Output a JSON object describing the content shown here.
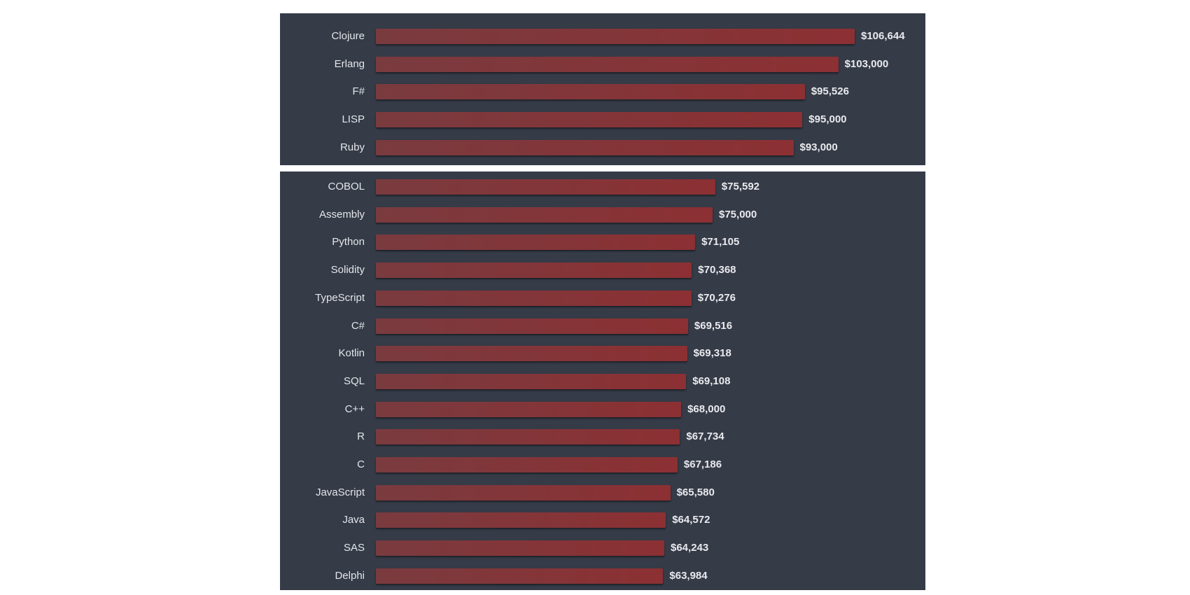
{
  "colors": {
    "panel_background": "#353b47",
    "bar_start": "#7a3b3f",
    "bar_end": "#8c3033",
    "label_text": "#e4e6ea"
  },
  "chart_data": [
    {
      "type": "bar",
      "orientation": "horizontal",
      "categories": [
        "Clojure",
        "Erlang",
        "F#",
        "LISP",
        "Ruby"
      ],
      "values": [
        106644,
        103000,
        95526,
        95000,
        93000
      ],
      "value_labels": [
        "$106,644",
        "$103,000",
        "$95,526",
        "$95,000",
        "$93,000"
      ],
      "xlim": [
        0,
        106644
      ]
    },
    {
      "type": "bar",
      "orientation": "horizontal",
      "categories": [
        "COBOL",
        "Assembly",
        "Python",
        "Solidity",
        "TypeScript",
        "C#",
        "Kotlin",
        "SQL",
        "C++",
        "R",
        "C",
        "JavaScript",
        "Java",
        "SAS",
        "Delphi"
      ],
      "values": [
        75592,
        75000,
        71105,
        70368,
        70276,
        69516,
        69318,
        69108,
        68000,
        67734,
        67186,
        65580,
        64572,
        64243,
        63984
      ],
      "value_labels": [
        "$75,592",
        "$75,000",
        "$71,105",
        "$70,368",
        "$70,276",
        "$69,516",
        "$69,318",
        "$69,108",
        "$68,000",
        "$67,734",
        "$67,186",
        "$65,580",
        "$64,572",
        "$64,243",
        "$63,984"
      ],
      "xlim": [
        0,
        106644
      ]
    }
  ]
}
